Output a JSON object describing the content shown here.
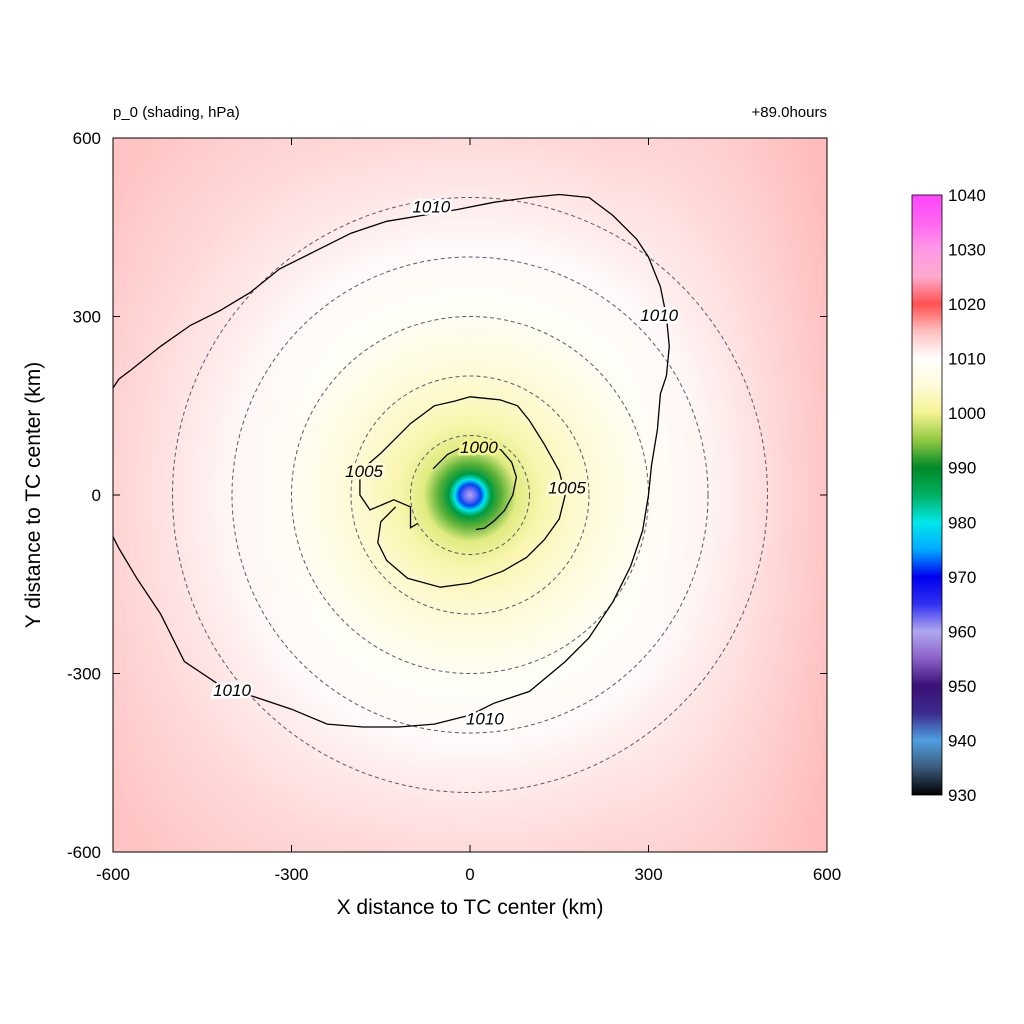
{
  "header": {
    "left_label": "p_0 (shading, hPa)",
    "right_label": "+89.0hours"
  },
  "chart_data": {
    "type": "heatmap",
    "title": "",
    "xlabel": "X distance to TC center (km)",
    "ylabel": "Y distance to TC center (km)",
    "xlim": [
      -600,
      600
    ],
    "ylim": [
      -600,
      600
    ],
    "x_ticks": [
      -600,
      -300,
      0,
      300,
      600
    ],
    "y_ticks": [
      -600,
      -300,
      0,
      300,
      600
    ],
    "grid": false,
    "variable": "p_0",
    "units": "hPa",
    "center_value": 960,
    "colorbar": {
      "placement": "right",
      "min": 930,
      "max": 1040,
      "ticks": [
        930,
        940,
        950,
        960,
        970,
        980,
        990,
        1000,
        1010,
        1020,
        1030,
        1040
      ],
      "colors": [
        {
          "v": 930,
          "c": "#000000"
        },
        {
          "v": 935,
          "c": "#3a5a7a"
        },
        {
          "v": 940,
          "c": "#4f9fe0"
        },
        {
          "v": 945,
          "c": "#3c2a8c"
        },
        {
          "v": 950,
          "c": "#3a1078"
        },
        {
          "v": 955,
          "c": "#8a60c8"
        },
        {
          "v": 960,
          "c": "#b0a8f0"
        },
        {
          "v": 965,
          "c": "#3030f0"
        },
        {
          "v": 970,
          "c": "#0000ee"
        },
        {
          "v": 975,
          "c": "#00aaff"
        },
        {
          "v": 980,
          "c": "#00e8e8"
        },
        {
          "v": 985,
          "c": "#00b060"
        },
        {
          "v": 990,
          "c": "#008a28"
        },
        {
          "v": 995,
          "c": "#90c840"
        },
        {
          "v": 1000,
          "c": "#f4f490"
        },
        {
          "v": 1005,
          "c": "#fffad8"
        },
        {
          "v": 1010,
          "c": "#ffffff"
        },
        {
          "v": 1015,
          "c": "#ffc0c0"
        },
        {
          "v": 1020,
          "c": "#ff5050"
        },
        {
          "v": 1025,
          "c": "#ffaacc"
        },
        {
          "v": 1030,
          "c": "#ff99e6"
        },
        {
          "v": 1035,
          "c": "#ff66f0"
        },
        {
          "v": 1040,
          "c": "#ff44ff"
        }
      ]
    },
    "range_rings_km": [
      100,
      200,
      300,
      400,
      500
    ],
    "contours": [
      {
        "level": 1000,
        "label": "1000",
        "points": [
          [
            -62,
            44
          ],
          [
            -38,
            68
          ],
          [
            -10,
            82
          ],
          [
            22,
            86
          ],
          [
            52,
            76
          ],
          [
            70,
            55
          ],
          [
            78,
            30
          ],
          [
            72,
            0
          ],
          [
            58,
            -26
          ],
          [
            40,
            -44
          ],
          [
            24,
            -56
          ],
          [
            10,
            -58
          ]
        ],
        "label_at": [
          15,
          78
        ]
      },
      {
        "level": 1005,
        "label": "1005",
        "points": [
          [
            -88,
            -48
          ],
          [
            -100,
            -55
          ],
          [
            -100,
            -20
          ],
          [
            -128,
            -8
          ],
          [
            -168,
            -25
          ],
          [
            -185,
            0
          ],
          [
            -185,
            40
          ],
          [
            -150,
            70
          ],
          [
            -100,
            120
          ],
          [
            -60,
            150
          ],
          [
            -25,
            158
          ],
          [
            0,
            165
          ],
          [
            50,
            160
          ],
          [
            80,
            150
          ],
          [
            100,
            125
          ],
          [
            125,
            85
          ],
          [
            150,
            40
          ],
          [
            160,
            0
          ],
          [
            150,
            -40
          ],
          [
            125,
            -75
          ],
          [
            95,
            -105
          ],
          [
            55,
            -128
          ],
          [
            0,
            -148
          ],
          [
            -50,
            -155
          ],
          [
            -105,
            -140
          ],
          [
            -140,
            -110
          ],
          [
            -155,
            -80
          ],
          [
            -150,
            -45
          ],
          [
            -125,
            -20
          ]
        ],
        "labels": [
          {
            "text": "1005",
            "at": [
              -178,
              38
            ]
          },
          {
            "text": "1005",
            "at": [
              163,
              10
            ]
          }
        ]
      },
      {
        "level": 1010,
        "label": "1010",
        "points": [
          [
            -600,
            180
          ],
          [
            -590,
            195
          ],
          [
            -570,
            210
          ],
          [
            -520,
            250
          ],
          [
            -470,
            285
          ],
          [
            -420,
            310
          ],
          [
            -370,
            340
          ],
          [
            -320,
            380
          ],
          [
            -260,
            410
          ],
          [
            -200,
            440
          ],
          [
            -140,
            460
          ],
          [
            -80,
            470
          ],
          [
            -20,
            480
          ],
          [
            40,
            492
          ],
          [
            100,
            500
          ],
          [
            150,
            505
          ],
          [
            200,
            500
          ],
          [
            240,
            470
          ],
          [
            280,
            430
          ],
          [
            300,
            400
          ],
          [
            320,
            350
          ],
          [
            330,
            300
          ],
          [
            335,
            250
          ],
          [
            330,
            200
          ],
          [
            320,
            170
          ],
          [
            315,
            110
          ],
          [
            305,
            50
          ],
          [
            300,
            0
          ],
          [
            290,
            -60
          ],
          [
            270,
            -120
          ],
          [
            240,
            -180
          ],
          [
            200,
            -240
          ],
          [
            160,
            -280
          ],
          [
            100,
            -330
          ],
          [
            40,
            -350
          ],
          [
            0,
            -370
          ],
          [
            -60,
            -385
          ],
          [
            -120,
            -390
          ],
          [
            -180,
            -390
          ],
          [
            -240,
            -385
          ],
          [
            -300,
            -360
          ],
          [
            -360,
            -340
          ],
          [
            -420,
            -320
          ],
          [
            -480,
            -280
          ],
          [
            -520,
            -200
          ],
          [
            -560,
            -140
          ],
          [
            -590,
            -90
          ],
          [
            -600,
            -70
          ]
        ],
        "labels": [
          {
            "text": "1010",
            "at": [
              -65,
              482
            ]
          },
          {
            "text": "1010",
            "at": [
              318,
              300
            ]
          },
          {
            "text": "1010",
            "at": [
              -400,
              -330
            ]
          },
          {
            "text": "1010",
            "at": [
              25,
              -378
            ]
          }
        ]
      }
    ]
  }
}
